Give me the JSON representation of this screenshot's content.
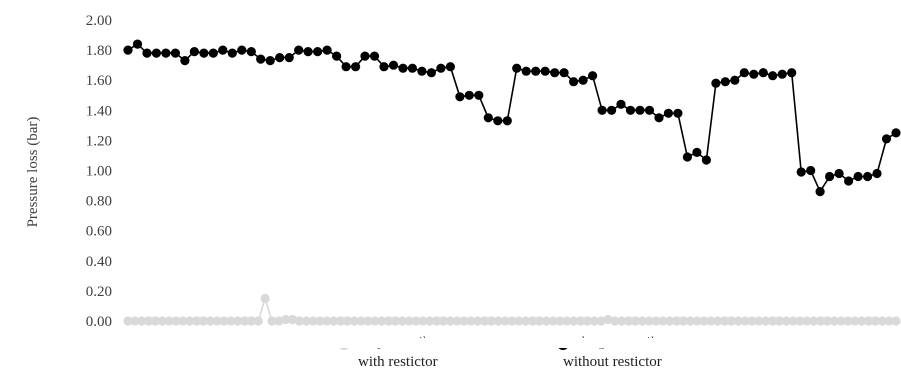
{
  "chart_data": {
    "type": "line",
    "title": "",
    "xlabel": "",
    "ylabel": "Pressure loss (bar)",
    "ylim": [
      0,
      2.0
    ],
    "yticks": [
      "0.00",
      "0.20",
      "0.40",
      "0.60",
      "0.80",
      "1.00",
      "1.20",
      "1.40",
      "1.60",
      "1.80",
      "2.00"
    ],
    "grid": false,
    "legend_position": "bottom",
    "legend_overlap_labels": [
      "tanpa restriktor",
      "dengan restriktor"
    ],
    "legend_labels": [
      "with restictor",
      "without restictor"
    ],
    "series": [
      {
        "name": "with restictor",
        "color": "#d9d9d9",
        "marker": "circle",
        "values": [
          0,
          0,
          0,
          0,
          0,
          0,
          0,
          0,
          0,
          0,
          0,
          0,
          0,
          0,
          0,
          0,
          0,
          0,
          0,
          0,
          0.15,
          0,
          0,
          0.01,
          0.01,
          0,
          0,
          0,
          0,
          0,
          0,
          0,
          0,
          0,
          0,
          0,
          0,
          0,
          0,
          0,
          0,
          0,
          0,
          0,
          0,
          0,
          0,
          0,
          0,
          0,
          0,
          0,
          0,
          0,
          0,
          0,
          0,
          0,
          0,
          0,
          0,
          0,
          0,
          0,
          0,
          0,
          0,
          0,
          0,
          0,
          0.01,
          0,
          0,
          0,
          0,
          0,
          0,
          0,
          0,
          0,
          0,
          0,
          0,
          0,
          0,
          0,
          0,
          0,
          0,
          0,
          0,
          0,
          0,
          0,
          0,
          0,
          0,
          0,
          0,
          0,
          0,
          0,
          0,
          0,
          0,
          0,
          0,
          0,
          0,
          0,
          0,
          0,
          0
        ]
      },
      {
        "name": "without restictor",
        "color": "#000000",
        "marker": "circle",
        "values": [
          1.8,
          1.84,
          1.78,
          1.78,
          1.78,
          1.78,
          1.73,
          1.79,
          1.78,
          1.78,
          1.8,
          1.78,
          1.8,
          1.79,
          1.74,
          1.73,
          1.75,
          1.75,
          1.8,
          1.79,
          1.79,
          1.8,
          1.76,
          1.69,
          1.69,
          1.76,
          1.76,
          1.69,
          1.7,
          1.68,
          1.68,
          1.66,
          1.65,
          1.68,
          1.69,
          1.49,
          1.5,
          1.5,
          1.35,
          1.33,
          1.33,
          1.68,
          1.66,
          1.66,
          1.66,
          1.65,
          1.65,
          1.59,
          1.6,
          1.63,
          1.4,
          1.4,
          1.44,
          1.4,
          1.4,
          1.4,
          1.35,
          1.38,
          1.38,
          1.09,
          1.12,
          1.07,
          1.58,
          1.59,
          1.6,
          1.65,
          1.64,
          1.65,
          1.63,
          1.64,
          1.65,
          0.99,
          1.0,
          0.86,
          0.96,
          0.98,
          0.93,
          0.96,
          0.96,
          0.98,
          1.21,
          1.25
        ]
      }
    ]
  }
}
